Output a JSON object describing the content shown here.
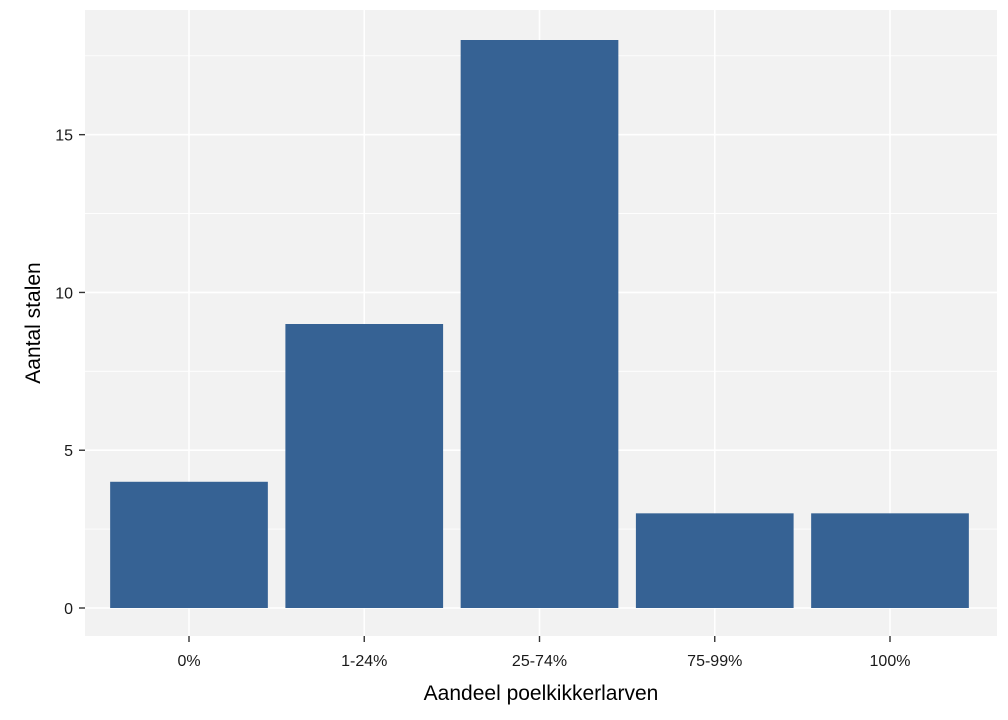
{
  "chart_data": {
    "type": "bar",
    "categories": [
      "0%",
      "1-24%",
      "25-74%",
      "75-99%",
      "100%"
    ],
    "values": [
      4,
      9,
      18,
      3,
      3
    ],
    "title": "",
    "xlabel": "Aandeel poelkikkerlarven",
    "ylabel": "Aantal stalen",
    "ylim": [
      0,
      18.9
    ],
    "yticks": [
      0,
      5,
      10,
      15
    ],
    "grid": true,
    "legend": "none",
    "colors": {
      "bar": "#366294",
      "panel_background": "#f2f2f2",
      "grid": "#ffffff"
    }
  }
}
